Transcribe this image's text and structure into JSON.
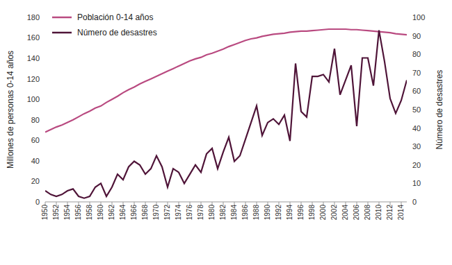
{
  "chart_data": {
    "type": "line",
    "y_label": "Millones de personas  0-14 años",
    "y2_label": "Número de desastres",
    "x": [
      1950,
      1951,
      1952,
      1953,
      1954,
      1955,
      1956,
      1957,
      1958,
      1959,
      1960,
      1961,
      1962,
      1963,
      1964,
      1965,
      1966,
      1967,
      1968,
      1969,
      1970,
      1971,
      1972,
      1973,
      1974,
      1975,
      1976,
      1977,
      1978,
      1979,
      1980,
      1981,
      1982,
      1983,
      1984,
      1985,
      1986,
      1987,
      1988,
      1989,
      1990,
      1991,
      1992,
      1993,
      1994,
      1995,
      1996,
      1997,
      1998,
      1999,
      2000,
      2001,
      2002,
      2003,
      2004,
      2005,
      2006,
      2007,
      2008,
      2009,
      2010,
      2011,
      2012,
      2013,
      2014,
      2015
    ],
    "xlim": [
      1950,
      2015
    ],
    "xticks": [
      1950,
      1952,
      1954,
      1956,
      1958,
      1960,
      1962,
      1964,
      1966,
      1968,
      1970,
      1972,
      1974,
      1976,
      1978,
      1980,
      1982,
      1984,
      1986,
      1988,
      1990,
      1992,
      1994,
      1996,
      1998,
      2000,
      2002,
      2004,
      2006,
      2008,
      2010,
      2012,
      2014
    ],
    "ylim": [
      0,
      180
    ],
    "yticks": [
      0,
      20,
      40,
      60,
      80,
      100,
      120,
      140,
      160,
      180
    ],
    "y2lim": [
      0,
      100
    ],
    "y2ticks": [
      0,
      10,
      20,
      30,
      40,
      50,
      60,
      70,
      80,
      90,
      100
    ],
    "grid": false,
    "legend": "upper left",
    "series": [
      {
        "name": "Población 0-14 años",
        "color": "#b94a80",
        "values": [
          68,
          70.5,
          73,
          75,
          77.5,
          80,
          83,
          86,
          88.5,
          91.5,
          93.5,
          97,
          100,
          103,
          106.5,
          109.5,
          112,
          115,
          117.5,
          120,
          122.5,
          125,
          127.5,
          130,
          132.5,
          135,
          137.5,
          139.5,
          141,
          143.5,
          145,
          147,
          149,
          151.5,
          153.5,
          155.5,
          157.5,
          159,
          160,
          161.5,
          162.5,
          163.5,
          164,
          164.5,
          165.5,
          166,
          166.5,
          166.5,
          167,
          167.5,
          168,
          168.5,
          168.5,
          168.5,
          168.5,
          168,
          168,
          167.5,
          167,
          166.5,
          166,
          165.5,
          165,
          164,
          163.5,
          163
        ]
      },
      {
        "name": "Número de desastres",
        "color": "#4f1438",
        "axis": "y2",
        "values": [
          6,
          4,
          3,
          4,
          6,
          7,
          3,
          2,
          3,
          8,
          10,
          3,
          8,
          15,
          12,
          19,
          22,
          20,
          15,
          18,
          25,
          19,
          8,
          18,
          16,
          10,
          15,
          20,
          16,
          26,
          29,
          18,
          27,
          35,
          22,
          25,
          34,
          43,
          52,
          36,
          43,
          45,
          42,
          47,
          33,
          75,
          49,
          46,
          68,
          68,
          69,
          65,
          83,
          58,
          66,
          74,
          41,
          78,
          78,
          63,
          93,
          76,
          56,
          48,
          55,
          66
        ]
      }
    ]
  }
}
